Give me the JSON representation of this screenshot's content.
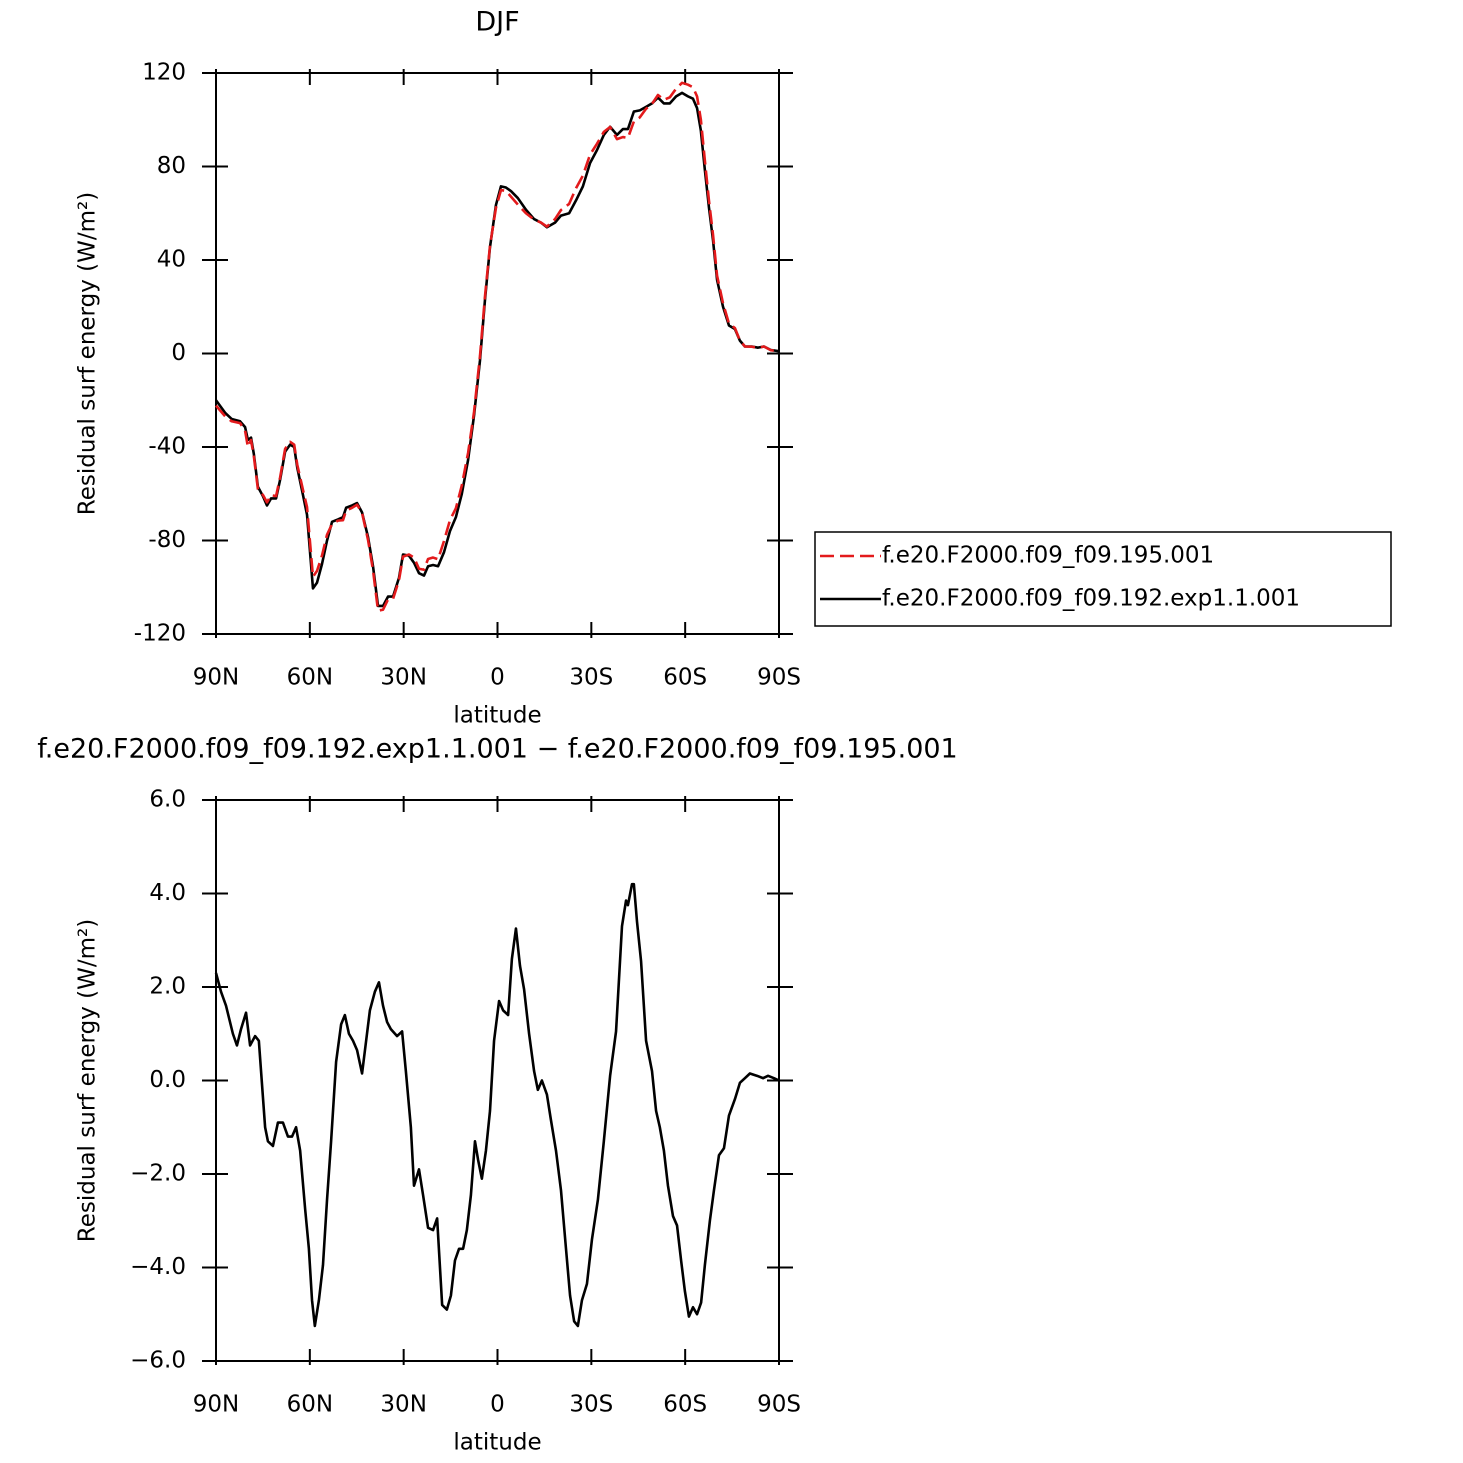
{
  "chart_data": [
    {
      "type": "line",
      "title": "DJF",
      "xlabel": "latitude",
      "ylabel": "Residual surf energy (W/m²)",
      "x": [
        90,
        87,
        85,
        82.3,
        80.7,
        79.8,
        78.8,
        77.9,
        76.6,
        75,
        73.7,
        72.4,
        70.8,
        69.5,
        67.9,
        66.3,
        65,
        64,
        62.2,
        60.9,
        59,
        57.7,
        56.1,
        54.5,
        52.9,
        51,
        49.4,
        48.4,
        46.5,
        44.9,
        43.3,
        41.4,
        39.8,
        38.2,
        36.6,
        35,
        33.4,
        31.5,
        30.2,
        28.3,
        26.7,
        25.1,
        23.5,
        22.2,
        20.6,
        19,
        17.1,
        15.2,
        13.3,
        11.4,
        9.4,
        7.5,
        5.6,
        4,
        2.4,
        0.5,
        -1.1,
        -2.7,
        -4.3,
        -6.5,
        -9.1,
        -11.7,
        -13.9,
        -15.8,
        -18.4,
        -20.3,
        -22.9,
        -25.1,
        -27.3,
        -29.6,
        -31.8,
        -34,
        -36,
        -38.2,
        -40.1,
        -41.7,
        -43.6,
        -45.5,
        -47.5,
        -49.4,
        -51.3,
        -53.2,
        -55.1,
        -57.1,
        -59,
        -60.9,
        -62.5,
        -63.8,
        -65,
        -66.3,
        -67.6,
        -68.9,
        -70.2,
        -72.1,
        -74,
        -75.9,
        -77.5,
        -79.1,
        -81.3,
        -83.3,
        -85.2,
        -87.4,
        -90
      ],
      "series": [
        {
          "name": "f.e20.F2000.f09_f09.195.001",
          "color": "#e31a1c",
          "dash": true,
          "values": [
            -22.3,
            -27,
            -29,
            -29.8,
            -33,
            -40,
            -37,
            -44,
            -58,
            -60.5,
            -63.7,
            -60.6,
            -61,
            -53,
            -40.8,
            -37.8,
            -39,
            -47.7,
            -58.3,
            -65.7,
            -95.5,
            -93,
            -86.4,
            -77.5,
            -73,
            -71.5,
            -71.3,
            -67.2,
            -66,
            -64.7,
            -68.2,
            -79.7,
            -92.7,
            -110,
            -109.6,
            -105.2,
            -105,
            -97,
            -86.9,
            -86,
            -87.3,
            -92.1,
            -92.5,
            -87.9,
            -87.3,
            -88,
            -80.2,
            -71.3,
            -66.2,
            -56.4,
            -42.5,
            -25,
            -1.1,
            24.5,
            46.1,
            62.3,
            69.9,
            69.6,
            67.1,
            63.7,
            60,
            57.3,
            56,
            54.3,
            57.5,
            61.4,
            64,
            70.7,
            76.1,
            85.1,
            89.7,
            94.8,
            96.9,
            91.7,
            92.6,
            92.2,
            99.3,
            101,
            104.7,
            106.8,
            110.6,
            108.5,
            109.6,
            113.3,
            115.8,
            115,
            113.9,
            110,
            100.2,
            82.5,
            65.5,
            50.9,
            33.3,
            21.5,
            12.8,
            10.9,
            5.6,
            3,
            2.9,
            2.4,
            3,
            1.4,
            1
          ]
        },
        {
          "name": "f.e20.F2000.f09_f09.192.exp1.1.001",
          "color": "#000000",
          "dash": false,
          "values": [
            -20,
            -25.5,
            -28,
            -29,
            -31.5,
            -37,
            -36,
            -43,
            -57,
            -61,
            -65,
            -62,
            -62,
            -54,
            -42,
            -39,
            -40,
            -49,
            -60.5,
            -69,
            -100.5,
            -98,
            -90,
            -80,
            -72,
            -71,
            -70,
            -66,
            -65,
            -64,
            -68,
            -78.5,
            -91,
            -108,
            -108,
            -104,
            -104,
            -96,
            -86,
            -86.5,
            -89.5,
            -94,
            -95,
            -91,
            -90.5,
            -91,
            -85,
            -76,
            -70,
            -60,
            -45.5,
            -26.5,
            -3,
            23,
            45.5,
            63.5,
            71.5,
            71,
            69.5,
            66.5,
            61.5,
            57.5,
            56,
            54,
            56,
            59,
            60,
            65.5,
            71.5,
            81.5,
            87,
            93.5,
            97,
            93.5,
            96,
            96,
            103.5,
            104,
            105.5,
            107,
            109.5,
            107,
            107,
            110,
            111.5,
            110,
            109,
            105,
            95.5,
            78.5,
            62.5,
            48.5,
            31.5,
            20,
            12,
            10.5,
            5.5,
            3,
            3,
            2.5,
            3,
            1.5,
            1
          ]
        }
      ],
      "xlim": [
        90,
        -90
      ],
      "xticks": [
        {
          "value": 90,
          "label": "90N"
        },
        {
          "value": 60,
          "label": "60N"
        },
        {
          "value": 30,
          "label": "30N"
        },
        0,
        {
          "value": -30,
          "label": "30S"
        },
        {
          "value": -60,
          "label": "60S"
        },
        {
          "value": -90,
          "label": "90S"
        }
      ],
      "ylim": [
        -120,
        120
      ],
      "yticks": [
        -120,
        -80,
        -40,
        0,
        40,
        80,
        120
      ],
      "legend": "right"
    },
    {
      "type": "line",
      "title": "f.e20.F2000.f09_f09.192.exp1.1.001 − f.e20.F2000.f09_f09.195.001",
      "xlabel": "latitude",
      "ylabel": "Residual surf energy (W/m²)",
      "x": [
        90,
        88.4,
        86.8,
        84.6,
        83.3,
        82,
        80.4,
        79.1,
        77.5,
        76.3,
        74.3,
        73.4,
        71.8,
        70.2,
        68.6,
        67,
        65.7,
        64.4,
        63.1,
        61.5,
        60.3,
        59.3,
        58.4,
        57.1,
        55.8,
        54.5,
        53.2,
        51.6,
        50,
        48.8,
        47.5,
        46.2,
        44.9,
        43.3,
        42,
        40.8,
        39.2,
        37.9,
        36.6,
        35.3,
        34.1,
        32.1,
        30.5,
        29.3,
        27.7,
        26.7,
        25.1,
        23.8,
        22.2,
        20.6,
        19.3,
        17.7,
        16.2,
        14.9,
        13.6,
        12.3,
        11,
        9.8,
        8.5,
        7.2,
        6.2,
        5,
        3.7,
        2.4,
        1.1,
        -0.5,
        -1.8,
        -3.4,
        -4.6,
        -5.9,
        -7.2,
        -8.5,
        -10.1,
        -11.7,
        -12.9,
        -14.2,
        -15.8,
        -17.1,
        -18.7,
        -20.3,
        -21.9,
        -23.2,
        -24.5,
        -25.7,
        -27,
        -28.6,
        -30.2,
        -32.1,
        -34,
        -36,
        -37.9,
        -39.8,
        -41.1,
        -41.7,
        -43,
        -43.6,
        -44.6,
        -45.9,
        -47.5,
        -49.4,
        -50.7,
        -51.9,
        -53.2,
        -54.5,
        -56.1,
        -57.4,
        -58.7,
        -59.9,
        -61.2,
        -62.5,
        -63.8,
        -65.1,
        -66.3,
        -67.9,
        -69.2,
        -70.8,
        -72.4,
        -74,
        -75.9,
        -77.5,
        -79.1,
        -80.7,
        -83,
        -84.9,
        -86.5,
        -88.4,
        -90
      ],
      "series": [
        {
          "color": "#000000",
          "dash": false,
          "values": [
            2.3,
            1.9,
            1.6,
            1,
            0.75,
            1.1,
            1.45,
            0.75,
            0.95,
            0.85,
            -1,
            -1.3,
            -1.4,
            -0.9,
            -0.9,
            -1.2,
            -1.2,
            -1,
            -1.5,
            -2.75,
            -3.6,
            -4.7,
            -5.25,
            -4.7,
            -3.95,
            -2.55,
            -1.3,
            0.4,
            1.2,
            1.4,
            1,
            0.85,
            0.65,
            0.15,
            0.85,
            1.5,
            1.9,
            2.1,
            1.6,
            1.25,
            1.1,
            0.95,
            1.05,
            0.2,
            -1,
            -2.25,
            -1.9,
            -2.45,
            -3.15,
            -3.2,
            -2.95,
            -4.8,
            -4.9,
            -4.6,
            -3.85,
            -3.6,
            -3.6,
            -3.2,
            -2.45,
            -1.3,
            -1.7,
            -2.1,
            -1.5,
            -0.65,
            0.85,
            1.7,
            1.5,
            1.4,
            2.6,
            3.25,
            2.45,
            1.95,
            1,
            0.2,
            -0.2,
            0,
            -0.3,
            -0.85,
            -1.5,
            -2.35,
            -3.6,
            -4.6,
            -5.15,
            -5.25,
            -4.7,
            -4.35,
            -3.4,
            -2.55,
            -1.3,
            0.1,
            1.05,
            3.3,
            3.85,
            3.75,
            4.2,
            4.2,
            3.4,
            2.55,
            0.85,
            0.2,
            -0.65,
            -1,
            -1.5,
            -2.25,
            -2.9,
            -3.1,
            -3.85,
            -4.5,
            -5.05,
            -4.85,
            -5,
            -4.75,
            -3.95,
            -3,
            -2.35,
            -1.6,
            -1.45,
            -0.75,
            -0.4,
            -0.05,
            0.05,
            0.15,
            0.1,
            0.05,
            0.1,
            0.05,
            0
          ]
        }
      ],
      "xlim": [
        90,
        -90
      ],
      "xticks": [
        {
          "value": 90,
          "label": "90N"
        },
        {
          "value": 60,
          "label": "60N"
        },
        {
          "value": 30,
          "label": "30N"
        },
        0,
        {
          "value": -30,
          "label": "30S"
        },
        {
          "value": -60,
          "label": "60S"
        },
        {
          "value": -90,
          "label": "90S"
        }
      ],
      "ylim": [
        -6,
        6
      ],
      "yticks": [
        {
          "value": -6,
          "label": "−6.0"
        },
        {
          "value": -4,
          "label": "−4.0"
        },
        {
          "value": -2,
          "label": "−2.0"
        },
        {
          "value": 0,
          "label": "0.0"
        },
        {
          "value": 2,
          "label": "2.0"
        },
        {
          "value": 4,
          "label": "4.0"
        },
        {
          "value": 6,
          "label": "6.0"
        }
      ]
    }
  ]
}
